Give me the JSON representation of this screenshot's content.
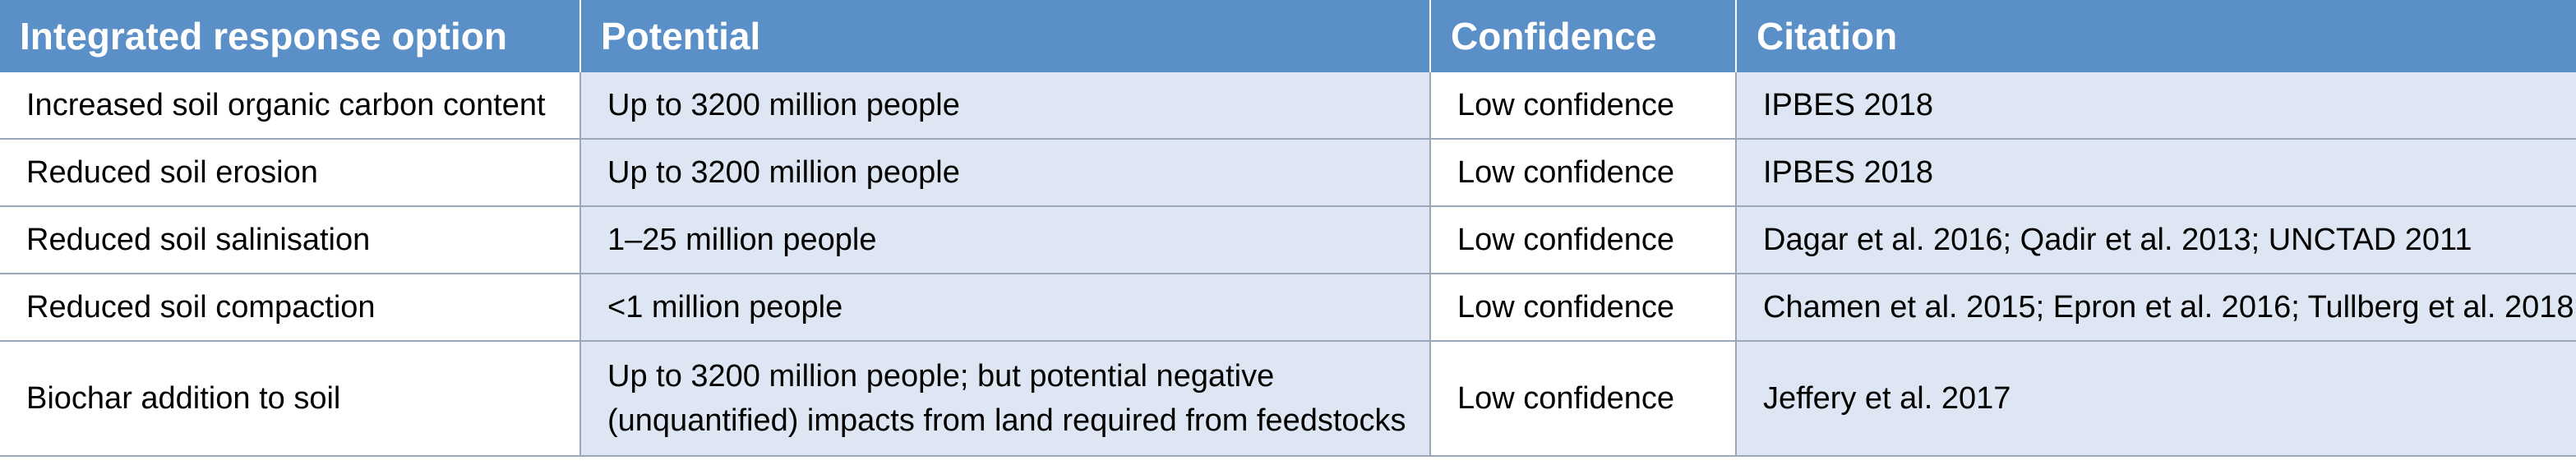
{
  "table": {
    "headers": [
      "Integrated response option",
      "Potential",
      "Confidence",
      "Citation"
    ],
    "rows": [
      {
        "option": "Increased soil organic carbon content",
        "potential": "Up to 3200 million people",
        "confidence": "Low confidence",
        "citation": "IPBES 2018"
      },
      {
        "option": "Reduced soil erosion",
        "potential": "Up to 3200 million people",
        "confidence": "Low confidence",
        "citation": "IPBES 2018"
      },
      {
        "option": "Reduced soil salinisation",
        "potential": "1–25 million people",
        "confidence": "Low confidence",
        "citation": "Dagar et al. 2016; Qadir et al. 2013; UNCTAD 2011"
      },
      {
        "option": "Reduced soil compaction",
        "potential": "<1 million people",
        "confidence": "Low confidence",
        "citation": "Chamen et al. 2015; Epron et al. 2016; Tullberg et al. 2018"
      },
      {
        "option": "Biochar addition to soil",
        "potential_lines": [
          "Up to 3200 million people; but potential negative",
          "(unquantified) impacts from land required from feedstocks"
        ],
        "confidence": "Low confidence",
        "citation": "Jeffery et al. 2017"
      }
    ]
  },
  "colors": {
    "header_background": "#5b8fc7",
    "header_text": "#ffffff",
    "shaded_cell": "#dde6f2",
    "border": "#9aa7b8"
  }
}
